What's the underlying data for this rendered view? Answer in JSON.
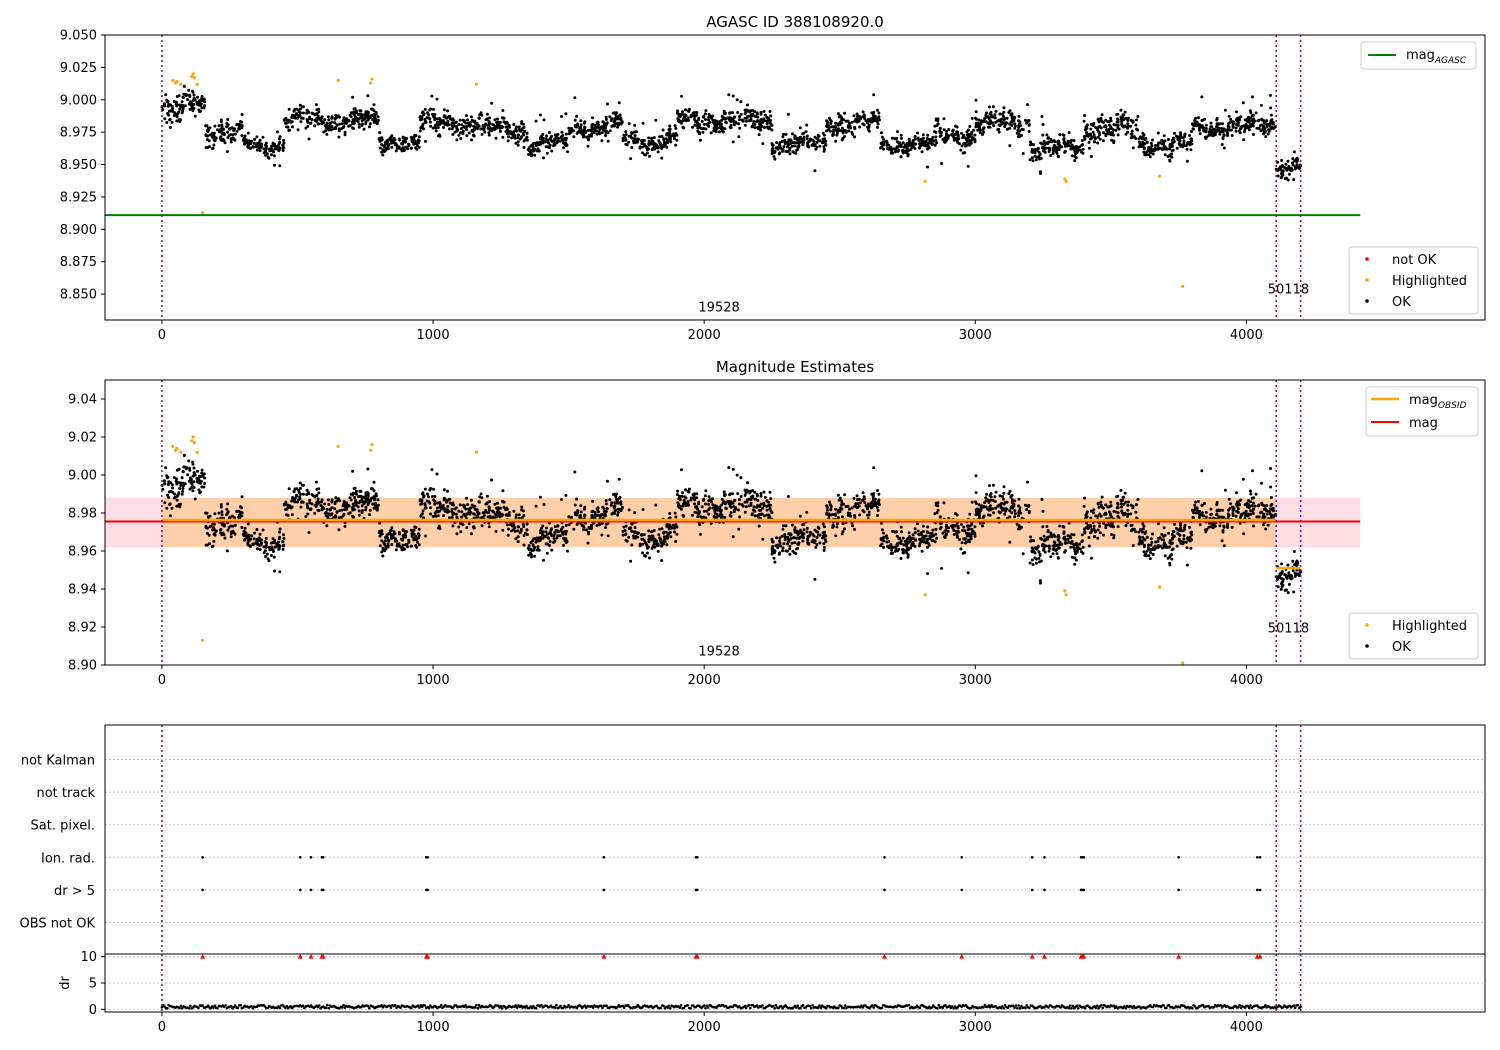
{
  "chart_data": [
    {
      "type": "scatter",
      "title": "AGASC ID 388108920.0",
      "xlim": [
        -210,
        4880
      ],
      "ylim": [
        8.83,
        9.05
      ],
      "xticks": [
        0,
        1000,
        2000,
        3000,
        4000
      ],
      "yticks": [
        8.85,
        8.875,
        8.9,
        8.925,
        8.95,
        8.975,
        9.0,
        9.025,
        9.05
      ],
      "ytick_labels": [
        "8.850",
        "8.875",
        "8.900",
        "8.925",
        "8.950",
        "8.975",
        "9.000",
        "9.025",
        "9.050"
      ],
      "obs_boundaries": [
        0,
        4110,
        4200
      ],
      "obs_labels": [
        {
          "text": "19528",
          "x": 2055,
          "y": 8.8365
        },
        {
          "text": "50118",
          "x": 4155,
          "y": 8.8505
        }
      ],
      "mag_agasc": 8.911,
      "hline_xrange": [
        -210,
        4420
      ],
      "legend_top": {
        "placement": "upper right",
        "entries": [
          {
            "label": "mag",
            "sub": "AGASC",
            "color": "#008000"
          }
        ]
      },
      "legend_bottom": {
        "placement": "lower right",
        "entries": [
          {
            "label": "not OK",
            "color": "#ff0000"
          },
          {
            "label": "Highlighted",
            "color": "#ffa500"
          },
          {
            "label": "OK",
            "color": "#000000"
          }
        ]
      },
      "highlighted_points": [
        [
          40,
          9.015
        ],
        [
          50,
          9.013
        ],
        [
          55,
          9.014
        ],
        [
          70,
          9.012
        ],
        [
          110,
          9.018
        ],
        [
          115,
          9.02
        ],
        [
          120,
          9.017
        ],
        [
          130,
          9.012
        ],
        [
          150,
          8.913
        ],
        [
          650,
          9.015
        ],
        [
          770,
          9.013
        ],
        [
          775,
          9.016
        ],
        [
          1160,
          9.012
        ],
        [
          2815,
          8.937
        ],
        [
          3330,
          8.939
        ],
        [
          3335,
          8.937
        ],
        [
          3680,
          8.941
        ],
        [
          3765,
          8.856
        ]
      ],
      "segments": [
        {
          "x0": 0,
          "x1": 80,
          "mean": 8.99,
          "amp": 0.01
        },
        {
          "x0": 80,
          "x1": 160,
          "mean": 8.999,
          "amp": 0.007
        },
        {
          "x0": 160,
          "x1": 300,
          "mean": 8.975,
          "amp": 0.008
        },
        {
          "x0": 300,
          "x1": 450,
          "mean": 8.965,
          "amp": 0.006
        },
        {
          "x0": 450,
          "x1": 800,
          "mean": 8.984,
          "amp": 0.007
        },
        {
          "x0": 800,
          "x1": 950,
          "mean": 8.968,
          "amp": 0.006
        },
        {
          "x0": 950,
          "x1": 1180,
          "mean": 8.982,
          "amp": 0.008
        },
        {
          "x0": 1180,
          "x1": 1350,
          "mean": 8.977,
          "amp": 0.007
        },
        {
          "x0": 1350,
          "x1": 1500,
          "mean": 8.966,
          "amp": 0.006
        },
        {
          "x0": 1500,
          "x1": 1700,
          "mean": 8.98,
          "amp": 0.007
        },
        {
          "x0": 1700,
          "x1": 1900,
          "mean": 8.968,
          "amp": 0.007
        },
        {
          "x0": 1900,
          "x1": 2250,
          "mean": 8.984,
          "amp": 0.007
        },
        {
          "x0": 2250,
          "x1": 2450,
          "mean": 8.966,
          "amp": 0.007
        },
        {
          "x0": 2450,
          "x1": 2650,
          "mean": 8.982,
          "amp": 0.008
        },
        {
          "x0": 2650,
          "x1": 2850,
          "mean": 8.966,
          "amp": 0.006
        },
        {
          "x0": 2850,
          "x1": 3000,
          "mean": 8.972,
          "amp": 0.007
        },
        {
          "x0": 3000,
          "x1": 3200,
          "mean": 8.982,
          "amp": 0.007
        },
        {
          "x0": 3200,
          "x1": 3400,
          "mean": 8.963,
          "amp": 0.007
        },
        {
          "x0": 3400,
          "x1": 3600,
          "mean": 8.978,
          "amp": 0.009
        },
        {
          "x0": 3600,
          "x1": 3800,
          "mean": 8.966,
          "amp": 0.008
        },
        {
          "x0": 3800,
          "x1": 4110,
          "mean": 8.98,
          "amp": 0.007
        },
        {
          "x0": 4110,
          "x1": 4200,
          "mean": 8.948,
          "amp": 0.007
        }
      ]
    },
    {
      "type": "scatter",
      "title": "Magnitude Estimates",
      "xlim": [
        -210,
        4880
      ],
      "ylim": [
        8.9,
        9.05
      ],
      "xticks": [
        0,
        1000,
        2000,
        3000,
        4000
      ],
      "yticks": [
        8.9,
        8.92,
        8.94,
        8.96,
        8.98,
        9.0,
        9.02,
        9.04
      ],
      "ytick_labels": [
        "8.90",
        "8.92",
        "8.94",
        "8.96",
        "8.98",
        "9.00",
        "9.02",
        "9.04"
      ],
      "obs_boundaries": [
        0,
        4110,
        4200
      ],
      "obs_labels": [
        {
          "text": "19528",
          "x": 2055,
          "y": 8.905
        },
        {
          "text": "50118",
          "x": 4155,
          "y": 8.917
        }
      ],
      "mag": 8.9755,
      "mag_band": [
        8.962,
        8.988
      ],
      "mag_xrange": [
        -210,
        4420
      ],
      "mag_obsid": [
        {
          "x0": 0,
          "x1": 4110,
          "value": 8.9763
        },
        {
          "x0": 4110,
          "x1": 4200,
          "value": 8.951
        }
      ],
      "legend_top": {
        "placement": "upper right",
        "entries": [
          {
            "label": "mag",
            "sub": "OBSID",
            "color": "#ffa500"
          },
          {
            "label": "mag",
            "sub": "",
            "color": "#ff0000"
          }
        ]
      },
      "legend_bottom": {
        "placement": "lower right",
        "entries": [
          {
            "label": "Highlighted",
            "color": "#ffa500"
          },
          {
            "label": "OK",
            "color": "#000000"
          }
        ]
      }
    },
    {
      "type": "scatter",
      "title": "",
      "xlim": [
        -210,
        4880
      ],
      "flag_labels": [
        "not Kalman",
        "not track",
        "Sat. pixel.",
        "Ion. rad.",
        "dr > 5",
        "OBS not OK"
      ],
      "flag_events": {
        "Ion. rad.": [
          150,
          510,
          550,
          590,
          595,
          975,
          980,
          1630,
          1970,
          1975,
          2665,
          2950,
          3210,
          3255,
          3390,
          3395,
          3400,
          3750,
          4040,
          4050
        ],
        "dr > 5": [
          150,
          510,
          550,
          590,
          595,
          975,
          980,
          1630,
          1970,
          1975,
          2665,
          2950,
          3210,
          3255,
          3390,
          3395,
          3400,
          3750,
          4040,
          4050
        ]
      },
      "dr_ylabel": "dr",
      "dr_yticks": [
        0,
        5,
        10
      ],
      "dr_ylim": [
        -0.5,
        10.5
      ],
      "dr_typical": [
        0.2,
        0.8
      ],
      "dr_clipped_value": 10
    }
  ]
}
